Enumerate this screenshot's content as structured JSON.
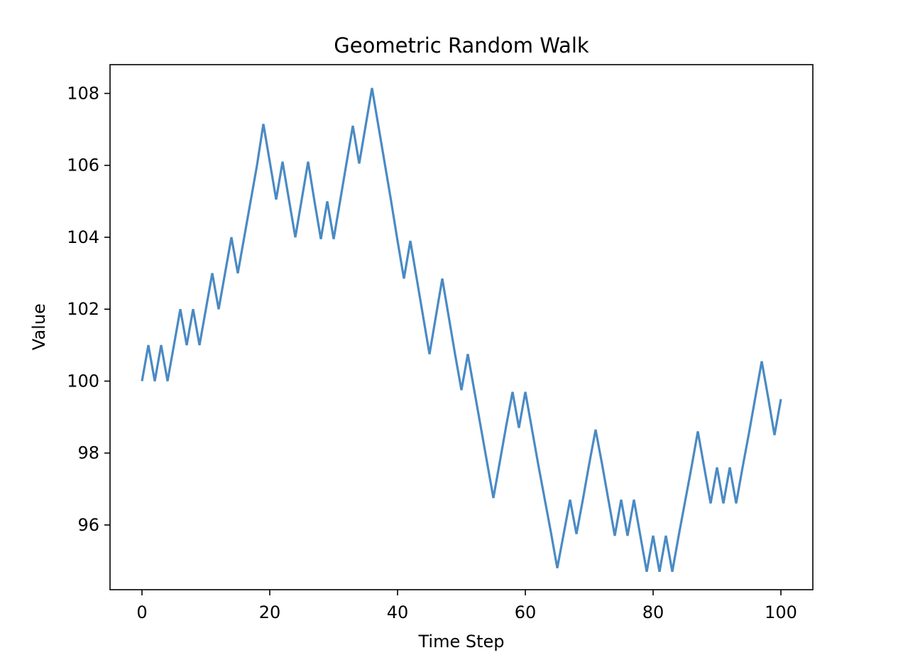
{
  "chart_data": {
    "type": "line",
    "title": "Geometric Random Walk",
    "xlabel": "Time Step",
    "ylabel": "Value",
    "xlim": [
      -5,
      105
    ],
    "ylim": [
      94.2,
      108.8
    ],
    "xticks": [
      0,
      20,
      40,
      60,
      80,
      100
    ],
    "yticks": [
      96,
      98,
      100,
      102,
      104,
      106,
      108
    ],
    "line_color": "#4a8ac4",
    "grid": false,
    "legend": null,
    "series": [
      {
        "x": [
          0,
          1,
          2,
          3,
          4,
          5,
          6,
          7,
          8,
          9,
          10,
          11,
          12,
          13,
          14,
          15,
          16,
          17,
          18,
          19,
          20,
          21,
          22,
          23,
          24,
          25,
          26,
          27,
          28,
          29,
          30,
          31,
          32,
          33,
          34,
          35,
          36,
          37,
          38,
          39,
          40,
          41,
          42,
          43,
          44,
          45,
          46,
          47,
          48,
          49,
          50,
          51,
          52,
          53,
          54,
          55,
          56,
          57,
          58,
          59,
          60,
          61,
          62,
          63,
          64,
          65,
          66,
          67,
          68,
          69,
          70,
          71,
          72,
          73,
          74,
          75,
          76,
          77,
          78,
          79,
          80,
          81,
          82,
          83,
          84,
          85,
          86,
          87,
          88,
          89,
          90,
          91,
          92,
          93,
          94,
          95,
          96,
          97,
          98,
          99,
          100
        ],
        "values": [
          100.0,
          101.0,
          100.0,
          101.0,
          100.0,
          101.0,
          102.0,
          101.0,
          102.0,
          101.0,
          102.0,
          103.0,
          102.0,
          103.0,
          104.0,
          103.0,
          104.0,
          105.0,
          106.0,
          107.15,
          106.1,
          105.05,
          106.1,
          105.05,
          104.0,
          105.05,
          106.1,
          105.0,
          103.95,
          105.0,
          103.95,
          105.0,
          106.05,
          107.1,
          106.05,
          107.1,
          108.15,
          107.1,
          106.05,
          105.0,
          103.9,
          102.85,
          103.9,
          102.85,
          101.8,
          100.75,
          101.8,
          102.85,
          101.8,
          100.75,
          99.75,
          100.75,
          99.75,
          98.75,
          97.75,
          96.75,
          97.75,
          98.75,
          99.7,
          98.7,
          99.7,
          98.7,
          97.7,
          96.75,
          95.8,
          94.8,
          95.75,
          96.7,
          95.75,
          96.7,
          97.7,
          98.65,
          97.7,
          96.7,
          95.7,
          96.7,
          95.7,
          96.7,
          95.7,
          94.7,
          95.7,
          94.7,
          95.7,
          94.7,
          95.7,
          96.65,
          97.6,
          98.6,
          97.6,
          96.6,
          97.6,
          96.6,
          97.6,
          96.6,
          97.6,
          98.55,
          99.55,
          100.55,
          99.55,
          98.5,
          99.5
        ]
      }
    ]
  }
}
